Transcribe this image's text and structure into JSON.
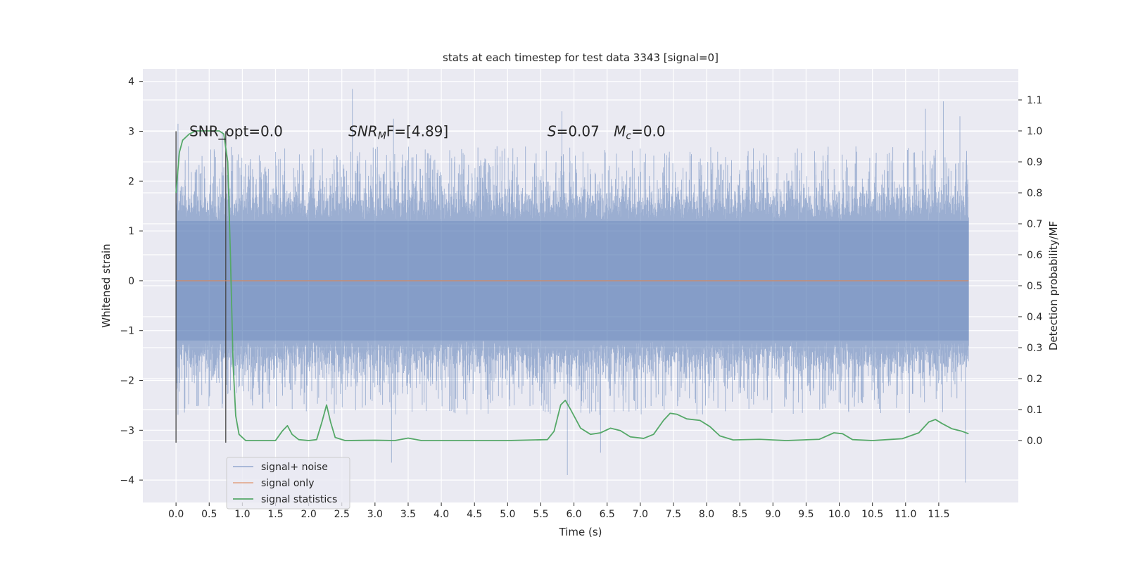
{
  "chart_data": {
    "type": "line",
    "title": "stats at each timestep for test data 3343 [signal=0]",
    "xlabel": "Time (s)",
    "ylabel": "Whitened strain",
    "y2label": "Detection probability/MF",
    "xlim": [
      -0.5,
      12.7
    ],
    "ylim": [
      -4.45,
      4.25
    ],
    "y2lim": [
      -0.2,
      1.2
    ],
    "x_ticks": [
      "0.0",
      "0.5",
      "1.0",
      "1.5",
      "2.0",
      "2.5",
      "3.0",
      "3.5",
      "4.0",
      "4.5",
      "5.0",
      "5.5",
      "6.0",
      "6.5",
      "7.0",
      "7.5",
      "8.0",
      "8.5",
      "9.0",
      "9.5",
      "10.0",
      "10.5",
      "11.0",
      "11.5"
    ],
    "y_ticks": [
      "−4",
      "−3",
      "−2",
      "−1",
      "0",
      "1",
      "2",
      "3",
      "4"
    ],
    "y2_ticks": [
      "0.0",
      "0.1",
      "0.2",
      "0.3",
      "0.4",
      "0.5",
      "0.6",
      "0.7",
      "0.8",
      "0.9",
      "1.0",
      "1.1"
    ],
    "grid": true,
    "legend_position": "lower-left",
    "vertical_lines": [
      0.0,
      0.75
    ],
    "annotations": [
      {
        "text": "SNR_opt=0.0",
        "x": 0.2,
        "y": 3.0
      },
      {
        "text": "SNR",
        "sub": "M",
        "tail": "F=[4.89]",
        "italic": true,
        "x": 2.6,
        "y": 3.0
      },
      {
        "text": "S",
        "tail": "=0.07",
        "italic": true,
        "x": 5.6,
        "y": 3.0
      },
      {
        "text": "M",
        "sub": "c",
        "tail": "=0.0",
        "italic": true,
        "x": 6.6,
        "y": 3.0
      }
    ],
    "series": [
      {
        "name": "signal+ noise",
        "color": "#4c72b0",
        "kind": "noise",
        "x_range": [
          0.0,
          11.95
        ],
        "core_amplitude": 1.2,
        "typical_peak": 2.0,
        "peaks": [
          {
            "x": 0.0,
            "y": 1.4
          },
          {
            "x": 0.03,
            "y": 3.15
          },
          {
            "x": 0.7,
            "y": 3.0
          },
          {
            "x": 2.66,
            "y": 3.85
          },
          {
            "x": 3.25,
            "y": -3.65
          },
          {
            "x": 3.28,
            "y": 3.25
          },
          {
            "x": 5.82,
            "y": 3.4
          },
          {
            "x": 5.9,
            "y": -3.9
          },
          {
            "x": 6.4,
            "y": -3.45
          },
          {
            "x": 11.3,
            "y": 3.45
          },
          {
            "x": 11.57,
            "y": 3.6
          },
          {
            "x": 11.82,
            "y": 3.3
          },
          {
            "x": 11.9,
            "y": -4.05
          }
        ]
      },
      {
        "name": "signal only",
        "color": "#dd8452",
        "kind": "line",
        "points": [
          [
            0.0,
            0.0
          ],
          [
            11.95,
            0.0
          ]
        ]
      },
      {
        "name": "signal statistics",
        "color": "#55a868",
        "kind": "line",
        "axis": "right",
        "points": [
          [
            0.0,
            0.8
          ],
          [
            0.05,
            0.93
          ],
          [
            0.1,
            0.97
          ],
          [
            0.2,
            0.99
          ],
          [
            0.3,
            1.0
          ],
          [
            0.5,
            1.0
          ],
          [
            0.65,
            1.0
          ],
          [
            0.72,
            0.99
          ],
          [
            0.78,
            0.9
          ],
          [
            0.82,
            0.6
          ],
          [
            0.86,
            0.25
          ],
          [
            0.9,
            0.08
          ],
          [
            0.95,
            0.02
          ],
          [
            1.05,
            0.0
          ],
          [
            1.3,
            0.0
          ],
          [
            1.5,
            0.0
          ],
          [
            1.6,
            0.03
          ],
          [
            1.68,
            0.048
          ],
          [
            1.75,
            0.02
          ],
          [
            1.85,
            0.003
          ],
          [
            2.0,
            0.0
          ],
          [
            2.12,
            0.003
          ],
          [
            2.2,
            0.06
          ],
          [
            2.27,
            0.115
          ],
          [
            2.33,
            0.06
          ],
          [
            2.4,
            0.01
          ],
          [
            2.55,
            0.0
          ],
          [
            3.0,
            0.001
          ],
          [
            3.3,
            0.0
          ],
          [
            3.5,
            0.008
          ],
          [
            3.7,
            0.0
          ],
          [
            4.0,
            0.0
          ],
          [
            5.0,
            0.0
          ],
          [
            5.6,
            0.003
          ],
          [
            5.7,
            0.03
          ],
          [
            5.8,
            0.115
          ],
          [
            5.87,
            0.13
          ],
          [
            5.95,
            0.1
          ],
          [
            6.1,
            0.04
          ],
          [
            6.25,
            0.02
          ],
          [
            6.4,
            0.025
          ],
          [
            6.55,
            0.04
          ],
          [
            6.7,
            0.032
          ],
          [
            6.85,
            0.012
          ],
          [
            7.05,
            0.007
          ],
          [
            7.2,
            0.02
          ],
          [
            7.35,
            0.065
          ],
          [
            7.45,
            0.088
          ],
          [
            7.55,
            0.085
          ],
          [
            7.7,
            0.07
          ],
          [
            7.9,
            0.065
          ],
          [
            8.05,
            0.045
          ],
          [
            8.2,
            0.015
          ],
          [
            8.4,
            0.002
          ],
          [
            8.8,
            0.004
          ],
          [
            9.2,
            0.0
          ],
          [
            9.7,
            0.004
          ],
          [
            9.92,
            0.025
          ],
          [
            10.05,
            0.022
          ],
          [
            10.2,
            0.003
          ],
          [
            10.5,
            0.0
          ],
          [
            10.95,
            0.006
          ],
          [
            11.2,
            0.025
          ],
          [
            11.35,
            0.06
          ],
          [
            11.45,
            0.068
          ],
          [
            11.55,
            0.055
          ],
          [
            11.7,
            0.038
          ],
          [
            11.85,
            0.03
          ],
          [
            11.95,
            0.022
          ]
        ]
      }
    ]
  }
}
